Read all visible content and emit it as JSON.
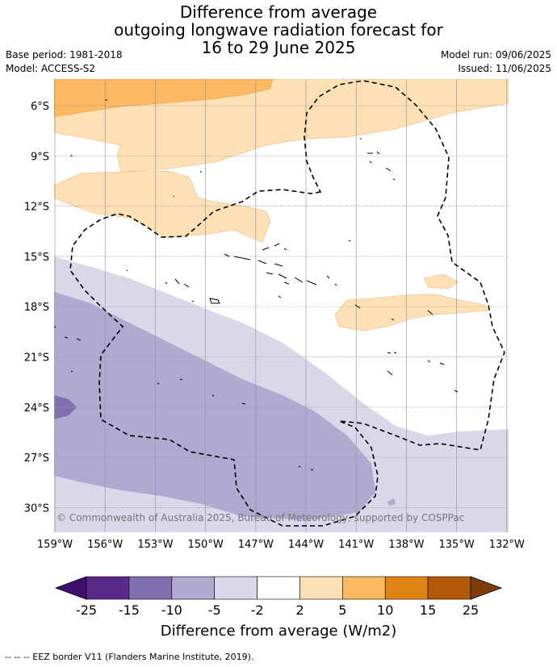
{
  "title": {
    "line1": "Difference from average",
    "line2": "outgoing longwave radiation forecast for",
    "line3": "16 to 29 June 2025"
  },
  "meta": {
    "base_period": "Base period: 1981-2018",
    "model": "Model: ACCESS-S2",
    "model_run": "Model run: 09/06/2025",
    "issued": "Issued: 11/06/2025"
  },
  "map": {
    "lat_labels": [
      "6°S",
      "9°S",
      "12°S",
      "15°S",
      "18°S",
      "21°S",
      "24°S",
      "27°S",
      "30°S"
    ],
    "lon_labels": [
      "159°W",
      "156°W",
      "153°W",
      "150°W",
      "147°W",
      "144°W",
      "141°W",
      "138°W",
      "135°W",
      "132°W"
    ],
    "copyright": "© Commonwealth of Australia 2025, Bureau of Meteorology, supported by COSPPac"
  },
  "colorbar": {
    "ticks": [
      "-25",
      "-15",
      "-10",
      "-5",
      "-2",
      "2",
      "5",
      "10",
      "15",
      "25"
    ],
    "colors": [
      "#3f0f6e",
      "#5a2a8a",
      "#8070b0",
      "#b1a9d2",
      "#d8d8ea",
      "#ffffff",
      "#fde0b5",
      "#fdb862",
      "#e08214",
      "#b35806",
      "#7f3b08"
    ],
    "title": "Difference from average (W/m2)"
  },
  "footer": "--  --  -- EEZ border V11 (Flanders Marine Institute, 2019)."
}
